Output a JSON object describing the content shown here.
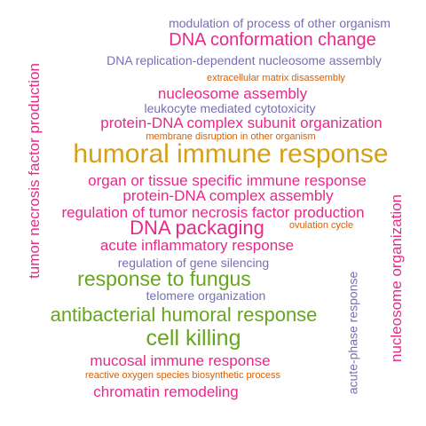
{
  "colors": {
    "magenta": "#e7298a",
    "purple": "#7570b3",
    "gold": "#d4a017",
    "orange": "#d95f02",
    "green": "#66a61e"
  },
  "words": [
    {
      "text": "modulation of process of other organism",
      "color": "purple",
      "weight": 2
    },
    {
      "text": "DNA conformation change",
      "color": "magenta",
      "weight": 4
    },
    {
      "text": "DNA replication-dependent nucleosome assembly",
      "color": "purple",
      "weight": 2
    },
    {
      "text": "extracellular matrix disassembly",
      "color": "orange",
      "weight": 1
    },
    {
      "text": "nucleosome assembly",
      "color": "magenta",
      "weight": 3
    },
    {
      "text": "leukocyte mediated cytotoxicity",
      "color": "purple",
      "weight": 2
    },
    {
      "text": "protein-DNA complex subunit organization",
      "color": "magenta",
      "weight": 3
    },
    {
      "text": "membrane disruption in other organism",
      "color": "orange",
      "weight": 1
    },
    {
      "text": "humoral immune response",
      "color": "gold",
      "weight": 6
    },
    {
      "text": "organ or tissue specific immune response",
      "color": "magenta",
      "weight": 3
    },
    {
      "text": "protein-DNA complex assembly",
      "color": "magenta",
      "weight": 3
    },
    {
      "text": "regulation of tumor necrosis factor production",
      "color": "magenta",
      "weight": 3
    },
    {
      "text": "DNA packaging",
      "color": "magenta",
      "weight": 4
    },
    {
      "text": "ovulation cycle",
      "color": "orange",
      "weight": 1
    },
    {
      "text": "acute inflammatory response",
      "color": "magenta",
      "weight": 3
    },
    {
      "text": "regulation of gene silencing",
      "color": "purple",
      "weight": 2
    },
    {
      "text": "response to fungus",
      "color": "green",
      "weight": 5
    },
    {
      "text": "telomere organization",
      "color": "purple",
      "weight": 2
    },
    {
      "text": "antibacterial humoral response",
      "color": "green",
      "weight": 5
    },
    {
      "text": "cell killing",
      "color": "green",
      "weight": 5
    },
    {
      "text": "mucosal immune response",
      "color": "magenta",
      "weight": 3
    },
    {
      "text": "reactive oxygen species biosynthetic process",
      "color": "orange",
      "weight": 1
    },
    {
      "text": "chromatin remodeling",
      "color": "magenta",
      "weight": 3
    },
    {
      "text": "tumor necrosis factor production",
      "color": "magenta",
      "weight": 3
    },
    {
      "text": "acute-phase response",
      "color": "purple",
      "weight": 2
    },
    {
      "text": "nucleosome organization",
      "color": "magenta",
      "weight": 3
    }
  ]
}
